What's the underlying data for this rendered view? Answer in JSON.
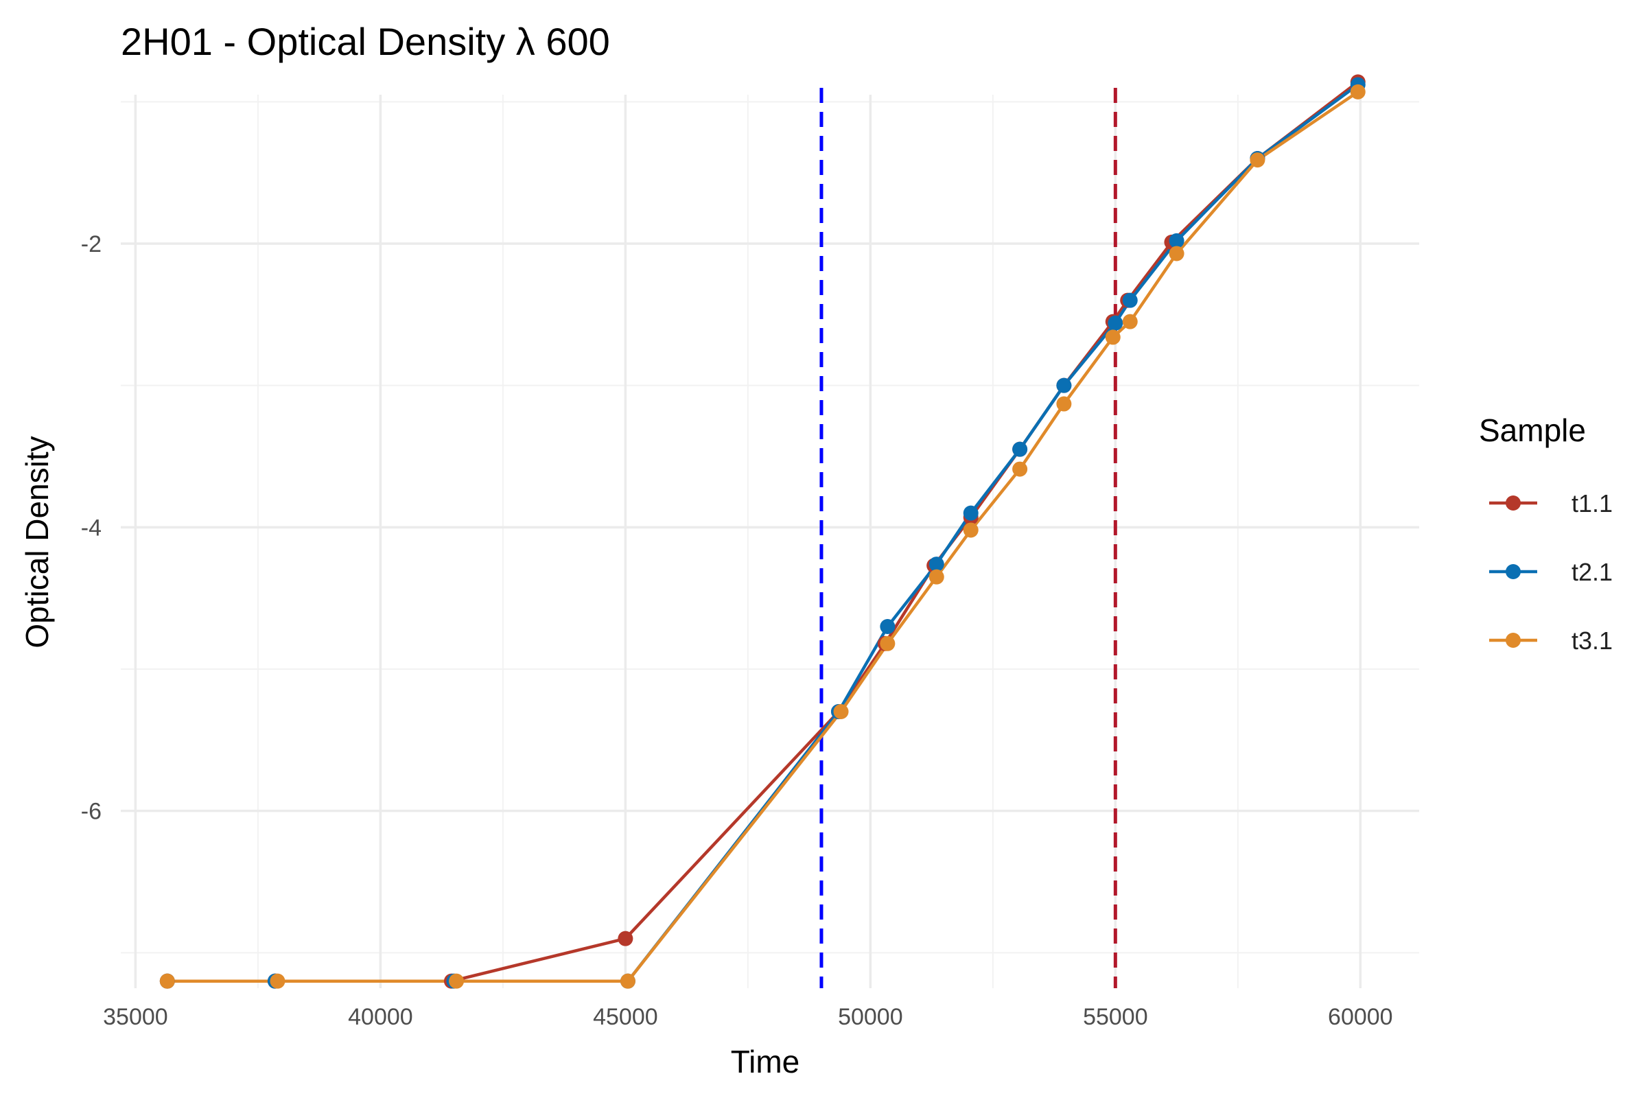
{
  "chart_data": {
    "type": "line",
    "title": "2H01 - Optical Density λ 600",
    "xlabel": "Time",
    "ylabel": "Optical Density",
    "xlim": [
      34700,
      61200
    ],
    "ylim": [
      -7.25,
      -0.95
    ],
    "x_ticks": [
      35000,
      40000,
      45000,
      50000,
      55000,
      60000
    ],
    "x_tick_labels": [
      "35000",
      "40000",
      "45000",
      "50000",
      "55000",
      "60000"
    ],
    "y_ticks": [
      -2,
      -4,
      -6
    ],
    "y_tick_labels": [
      "-2",
      "-4",
      "-6"
    ],
    "grid": true,
    "legend": {
      "title": "Sample",
      "position": "right"
    },
    "reference_lines": [
      {
        "axis": "x",
        "value": 49000,
        "color": "#0000ff",
        "style": "dashed"
      },
      {
        "axis": "x",
        "value": 55000,
        "color": "#b2182b",
        "style": "dashed"
      }
    ],
    "series": [
      {
        "name": "t1.1",
        "color": "#b5382a",
        "points": [
          [
            35650,
            -7.2
          ],
          [
            37850,
            -7.2
          ],
          [
            41450,
            -7.2
          ],
          [
            45000,
            -6.9
          ],
          [
            49350,
            -5.3
          ],
          [
            50300,
            -4.82
          ],
          [
            51300,
            -4.27
          ],
          [
            52050,
            -3.93
          ],
          [
            53050,
            -3.45
          ],
          [
            53950,
            -3.0
          ],
          [
            54950,
            -2.55
          ],
          [
            55250,
            -2.4
          ],
          [
            56150,
            -1.99
          ],
          [
            57900,
            -1.4
          ],
          [
            59950,
            -0.86
          ]
        ]
      },
      {
        "name": "t2.1",
        "color": "#0a6fb3",
        "points": [
          [
            35650,
            -7.2
          ],
          [
            37850,
            -7.2
          ],
          [
            41500,
            -7.2
          ],
          [
            45050,
            -7.2
          ],
          [
            49350,
            -5.3
          ],
          [
            50350,
            -4.7
          ],
          [
            51350,
            -4.26
          ],
          [
            52050,
            -3.9
          ],
          [
            53050,
            -3.45
          ],
          [
            53950,
            -3.0
          ],
          [
            55000,
            -2.56
          ],
          [
            55300,
            -2.4
          ],
          [
            56250,
            -1.98
          ],
          [
            57900,
            -1.4
          ],
          [
            59950,
            -0.88
          ]
        ]
      },
      {
        "name": "t3.1",
        "color": "#e08a2a",
        "points": [
          [
            35650,
            -7.2
          ],
          [
            37900,
            -7.2
          ],
          [
            41550,
            -7.2
          ],
          [
            45050,
            -7.2
          ],
          [
            49400,
            -5.3
          ],
          [
            50350,
            -4.82
          ],
          [
            51350,
            -4.35
          ],
          [
            52050,
            -4.02
          ],
          [
            53050,
            -3.59
          ],
          [
            53950,
            -3.13
          ],
          [
            54950,
            -2.66
          ],
          [
            55300,
            -2.55
          ],
          [
            56250,
            -2.07
          ],
          [
            57900,
            -1.41
          ],
          [
            59950,
            -0.93
          ]
        ]
      }
    ]
  }
}
